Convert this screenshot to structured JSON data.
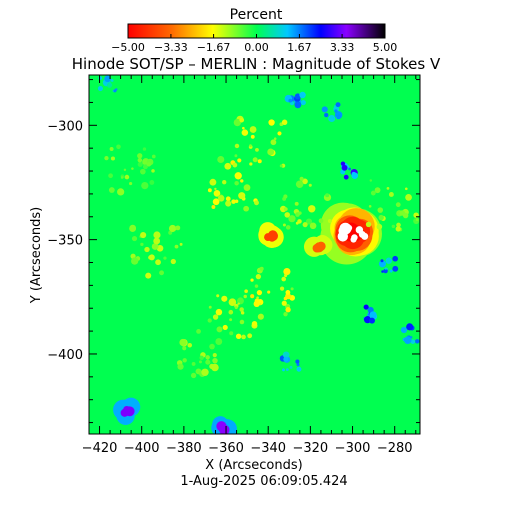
{
  "chart_data": {
    "type": "heatmap",
    "title": "Hinode SOT/SP – MERLIN : Magnitude of Stokes V",
    "xlabel": "X (Arcseconds)",
    "ylabel": "Y (Arcseconds)",
    "timestamp": "1-Aug-2025 06:09:05.424",
    "colorbar": {
      "label": "Percent",
      "range": [
        -5.0,
        5.0
      ],
      "tick_values": [
        -5.0,
        -3.33,
        -1.67,
        0.0,
        1.67,
        3.33,
        5.0
      ],
      "tick_labels": [
        "-5.00",
        "-3.33",
        "-1.67",
        "0.00",
        "1.67",
        "3.33",
        "5.00"
      ]
    },
    "xlim": [
      -425,
      -268
    ],
    "ylim": [
      -435,
      -278
    ],
    "x_ticks": [
      -420,
      -400,
      -380,
      -360,
      -340,
      -320,
      -300,
      -280
    ],
    "y_ticks": [
      -300,
      -350,
      -400
    ],
    "background_value": 0.0,
    "features": [
      {
        "name": "strong-polarity patch",
        "x": -300,
        "y": -347,
        "value": -5.0
      },
      {
        "name": "compact kernel",
        "x": -339,
        "y": -348,
        "value": -4.0
      },
      {
        "name": "compact kernel",
        "x": -316,
        "y": -353,
        "value": -3.5
      },
      {
        "name": "network cluster",
        "x": -356,
        "y": -326,
        "value": -1.8
      },
      {
        "name": "network cluster",
        "x": -344,
        "y": -308,
        "value": -1.7
      },
      {
        "name": "network cluster",
        "x": -340,
        "y": -373,
        "value": -1.8
      },
      {
        "name": "network cluster",
        "x": -357,
        "y": -383,
        "value": -1.5
      },
      {
        "name": "network cluster",
        "x": -393,
        "y": -355,
        "value": -1.3
      },
      {
        "name": "network cluster",
        "x": -322,
        "y": -334,
        "value": -1.3
      },
      {
        "name": "network cluster",
        "x": -372,
        "y": -400,
        "value": -1.1
      },
      {
        "name": "network cluster",
        "x": -281,
        "y": -335,
        "value": -1.2
      },
      {
        "name": "network cluster",
        "x": -405,
        "y": -319,
        "value": -1.0
      },
      {
        "name": "opposite-polarity element",
        "x": -361,
        "y": -432,
        "value": 3.5
      },
      {
        "name": "opposite-polarity element",
        "x": -407,
        "y": -425,
        "value": 3.4
      },
      {
        "name": "opposite-polarity element",
        "x": -301,
        "y": -319,
        "value": 2.8
      },
      {
        "name": "opposite-polarity element",
        "x": -327,
        "y": -288,
        "value": 2.2
      },
      {
        "name": "opposite-polarity element",
        "x": -310,
        "y": -294,
        "value": 2.0
      },
      {
        "name": "opposite-polarity element",
        "x": -292,
        "y": -382,
        "value": 2.6
      },
      {
        "name": "opposite-polarity element",
        "x": -272,
        "y": -391,
        "value": 2.5
      },
      {
        "name": "opposite-polarity element",
        "x": -283,
        "y": -361,
        "value": 2.2
      },
      {
        "name": "opposite-polarity element",
        "x": -329,
        "y": -404,
        "value": 1.8
      },
      {
        "name": "opposite-polarity element",
        "x": -416,
        "y": -282,
        "value": 1.5
      }
    ]
  }
}
